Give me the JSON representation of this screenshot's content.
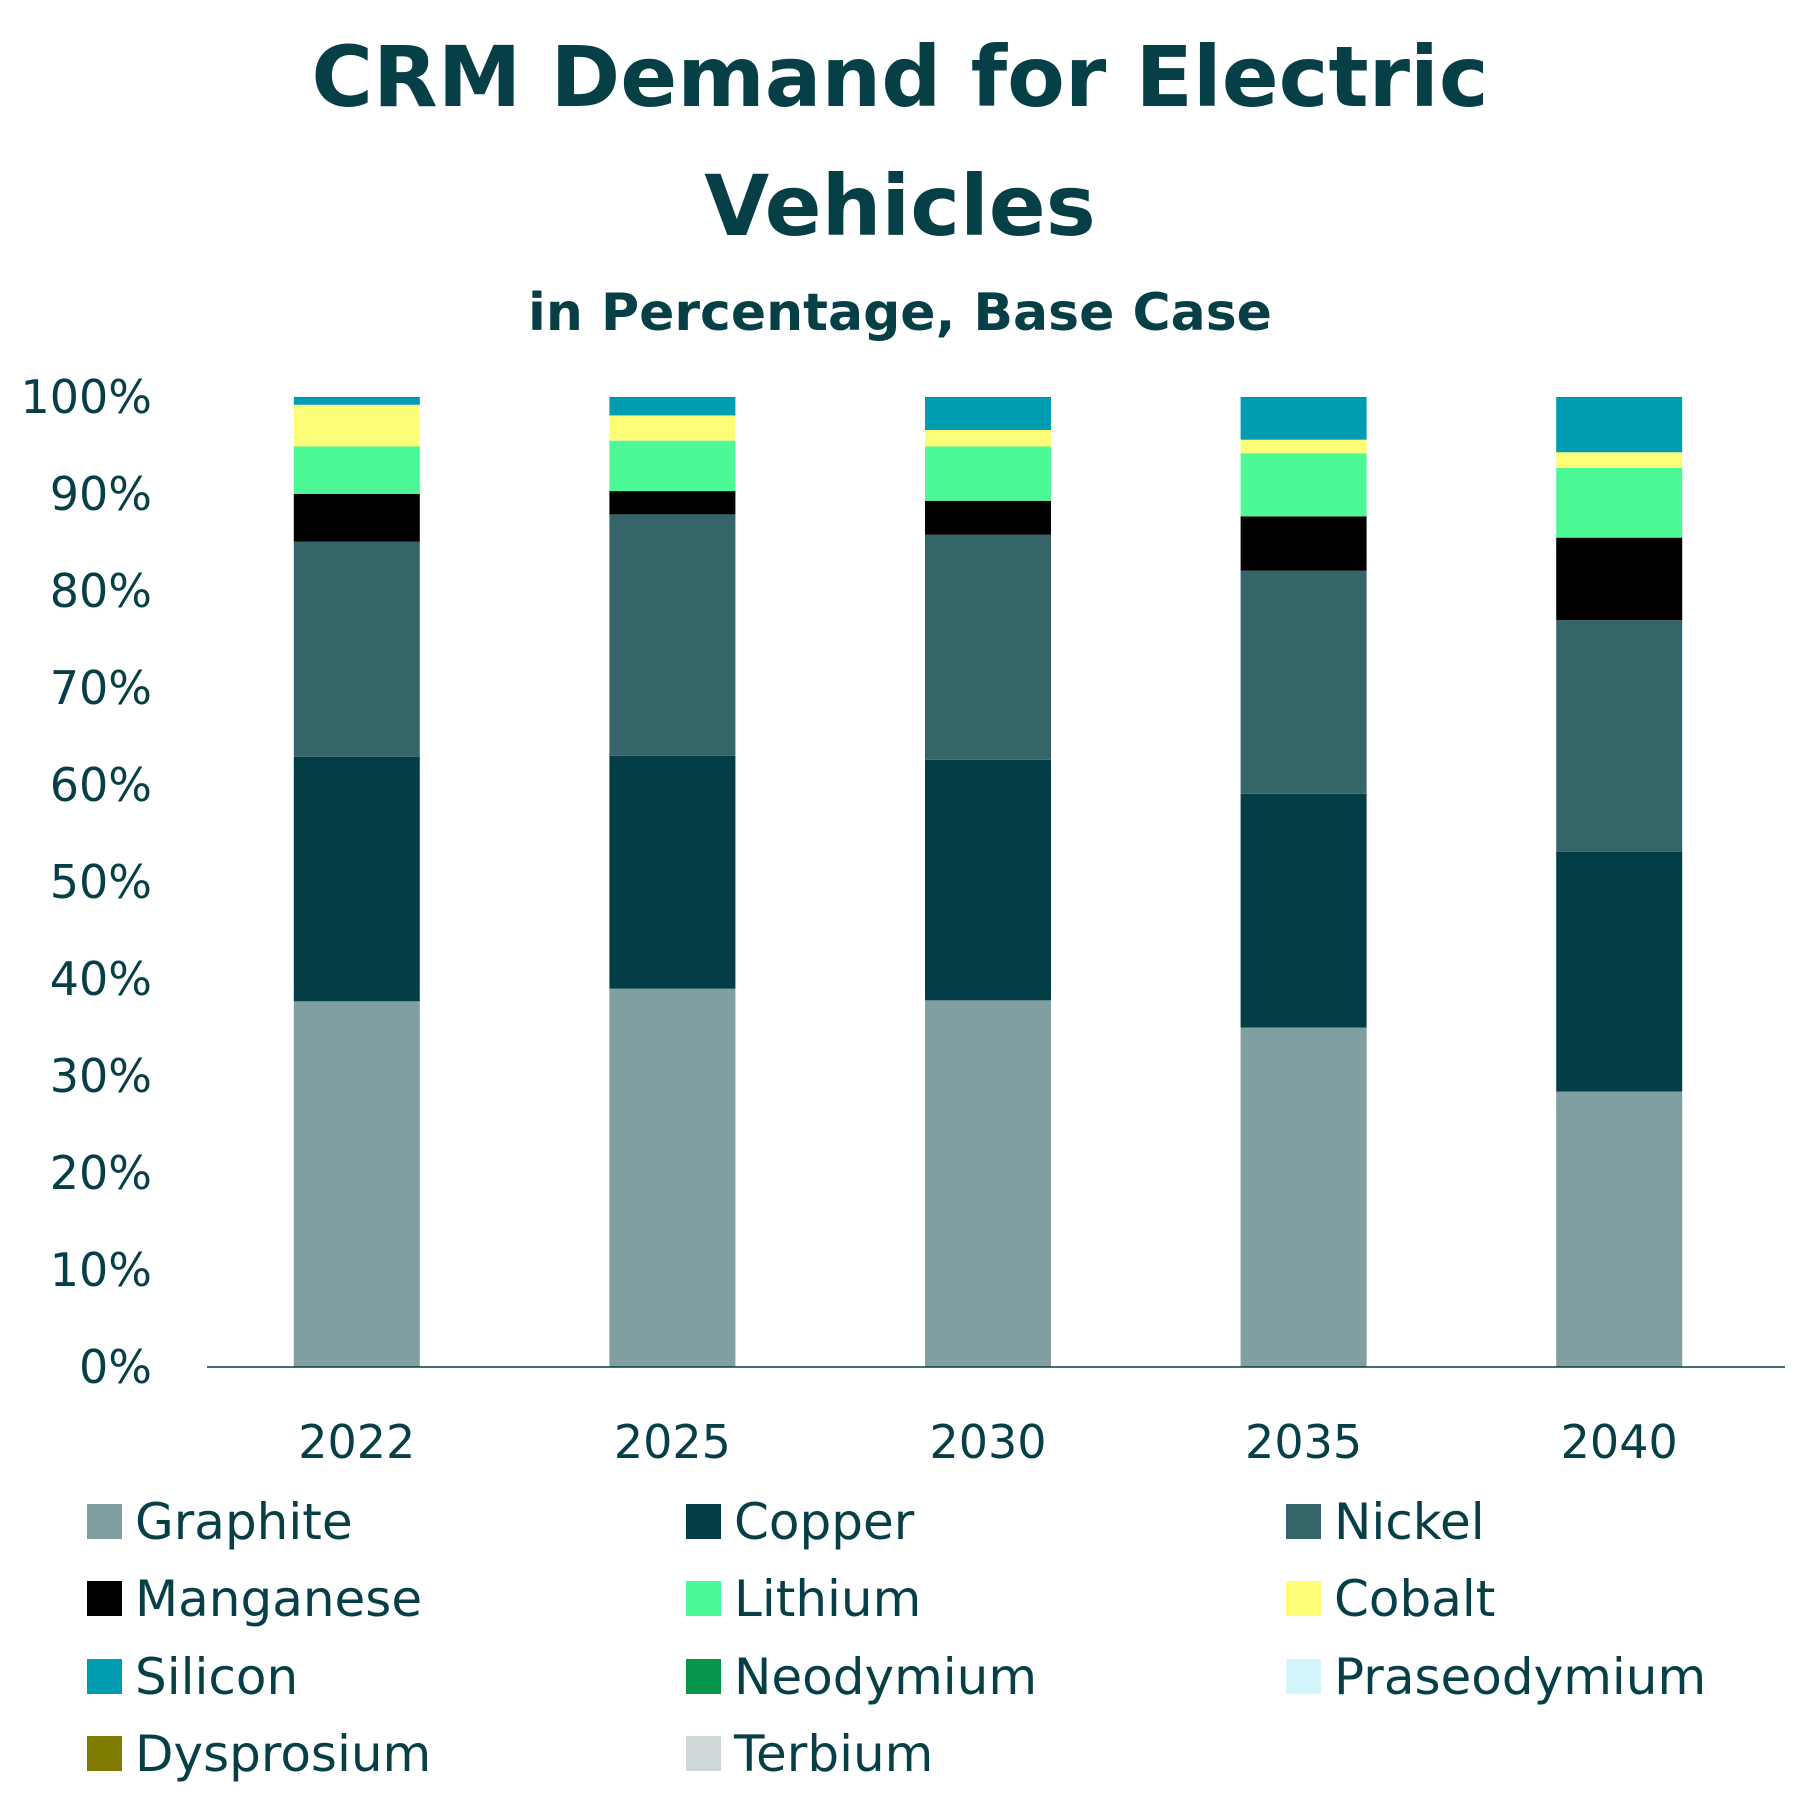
{
  "chart_data": {
    "type": "bar",
    "stacked": true,
    "title": "CRM Demand for Electric Vehicles",
    "title_lines": [
      "CRM Demand for Electric",
      "Vehicles"
    ],
    "subtitle": "in Percentage, Base Case",
    "xlabel": "",
    "ylabel": "",
    "ylim": [
      0,
      100
    ],
    "yticks": [
      "0%",
      "10%",
      "20%",
      "30%",
      "40%",
      "50%",
      "60%",
      "70%",
      "80%",
      "90%",
      "100%"
    ],
    "grid": false,
    "legend_position": "bottom",
    "categories": [
      "2022",
      "2025",
      "2030",
      "2035",
      "2040"
    ],
    "series": [
      {
        "name": "Graphite",
        "color": "#809fa0",
        "values": [
          37.7,
          39.0,
          37.8,
          35.0,
          28.4
        ]
      },
      {
        "name": "Copper",
        "color": "#033d45",
        "values": [
          25.2,
          24.0,
          24.8,
          24.1,
          24.7
        ]
      },
      {
        "name": "Nickel",
        "color": "#356569",
        "values": [
          22.2,
          24.9,
          23.2,
          23.0,
          23.9
        ]
      },
      {
        "name": "Manganese",
        "color": "#000000",
        "values": [
          4.9,
          2.4,
          3.5,
          5.6,
          8.5
        ]
      },
      {
        "name": "Lithium",
        "color": "#4cf996",
        "values": [
          4.9,
          5.2,
          5.6,
          6.5,
          7.2
        ]
      },
      {
        "name": "Cobalt",
        "color": "#fdfd78",
        "values": [
          4.3,
          2.6,
          1.7,
          1.4,
          1.6
        ]
      },
      {
        "name": "Silicon",
        "color": "#009db2",
        "values": [
          0.7,
          1.8,
          3.3,
          4.3,
          5.6
        ]
      },
      {
        "name": "Neodymium",
        "color": "#06964a",
        "values": [
          0.1,
          0.1,
          0.1,
          0.1,
          0.1
        ]
      },
      {
        "name": "Praseodymium",
        "color": "#d4f6fc",
        "values": [
          0,
          0,
          0,
          0,
          0
        ]
      },
      {
        "name": "Dysprosium",
        "color": "#7f7b00",
        "values": [
          0,
          0,
          0,
          0,
          0
        ]
      },
      {
        "name": "Terbium",
        "color": "#cfd8d8",
        "values": [
          0,
          0,
          0,
          0,
          0
        ]
      }
    ]
  }
}
